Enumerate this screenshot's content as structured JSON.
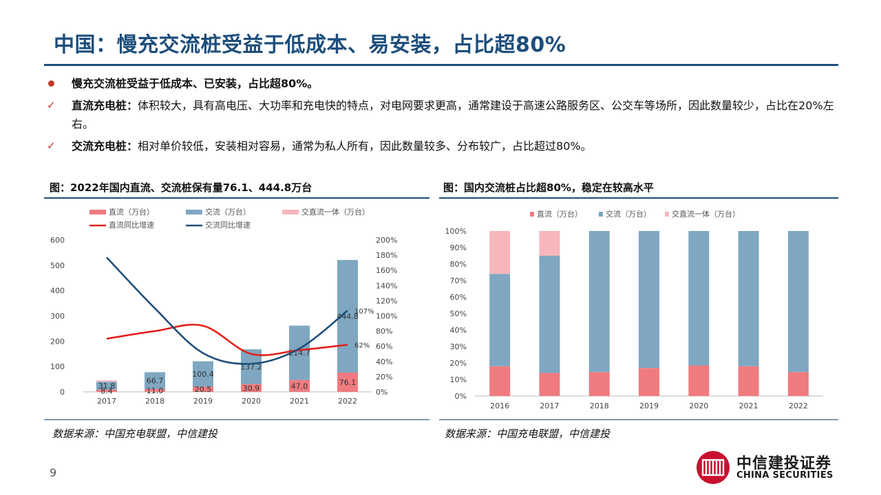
{
  "header": {
    "title": "中国：慢充交流桩受益于低成本、易安装，占比超80%"
  },
  "bullets": [
    {
      "type": "dot",
      "bold": "慢充交流桩受益于低成本、已安装，占比超80%。",
      "text": ""
    },
    {
      "type": "check",
      "bold": "直流充电桩：",
      "text": "体积较大，具有高电压、大功率和充电快的特点，对电网要求更高，通常建设于高速公路服务区、公交车等场所，因此数量较少，占比在20%左右。"
    },
    {
      "type": "check",
      "bold": "交流充电桩：",
      "text": "相对单价较低，安装相对容易，通常为私人所有，因此数量较多、分布较广，占比超过80%。"
    }
  ],
  "check_glyph": "✓",
  "left_panel": {
    "title": "图：2022年国内直流、交流桩保有量76.1、444.8万台",
    "source": "数据来源：中国充电联盟，中信建投"
  },
  "right_panel": {
    "title": "图：国内交流桩占比超80%，稳定在较高水平",
    "source": "数据来源：中国充电联盟，中信建投"
  },
  "page_number": "9",
  "logo": {
    "cn": "中信建投证券",
    "en": "CHINA SECURITIES",
    "icon": "citic-logo-icon"
  },
  "colors": {
    "brand_blue": "#1d4e7c",
    "dc": "#f07b7f",
    "ac": "#7fa7c1",
    "combo": "#f7b6bb",
    "dc_line": "#e3201b",
    "ac_line": "#1f4e79"
  },
  "chart_data": [
    {
      "type": "bar",
      "stacked": true,
      "categories": [
        "2017",
        "2018",
        "2019",
        "2020",
        "2021",
        "2022"
      ],
      "series": [
        {
          "name": "直流（万台）",
          "values": [
            8.4,
            11.0,
            20.5,
            30.9,
            47.0,
            76.1
          ],
          "labels": [
            "8.4",
            "11.0",
            "20.5",
            "30.9",
            "47.0",
            "76.1"
          ]
        },
        {
          "name": "交流（万台）",
          "values": [
            31.8,
            66.7,
            100.4,
            137.2,
            214.7,
            444.8
          ],
          "labels": [
            "31.8",
            "66.7",
            "100.4",
            "137.2",
            "214.7",
            "444.8"
          ]
        },
        {
          "name": "交直流一体（万台）",
          "values": [
            5.2,
            0,
            0,
            0,
            0,
            0
          ],
          "labels": [
            "",
            "",
            "",
            "",
            "",
            ""
          ]
        }
      ],
      "lines": [
        {
          "name": "直流同比增速",
          "axis": "right",
          "values": [
            70,
            80,
            87,
            50,
            55,
            62
          ],
          "end_label": "62%"
        },
        {
          "name": "交流同比增速",
          "axis": "right",
          "values": [
            177,
            110,
            51,
            37,
            57,
            107
          ],
          "end_label": "107%"
        }
      ],
      "ylim": [
        0,
        600
      ],
      "yticks": [
        "0",
        "100",
        "200",
        "300",
        "400",
        "500",
        "600"
      ],
      "y2lim": [
        0,
        200
      ],
      "y2ticks": [
        "0%",
        "20%",
        "40%",
        "60%",
        "80%",
        "100%",
        "120%",
        "140%",
        "160%",
        "180%",
        "200%"
      ],
      "legend": "top"
    },
    {
      "type": "bar",
      "stacked": true,
      "percent": true,
      "categories": [
        "2016",
        "2017",
        "2018",
        "2019",
        "2020",
        "2021",
        "2022"
      ],
      "series": [
        {
          "name": "直流（万台）",
          "values": [
            18,
            14,
            14.5,
            17,
            18.5,
            18,
            14.5
          ]
        },
        {
          "name": "交流（万台）",
          "values": [
            56,
            71,
            85.5,
            83,
            81.5,
            82,
            85.5
          ]
        },
        {
          "name": "交直流一体（万台）",
          "values": [
            26,
            15,
            0,
            0,
            0,
            0,
            0
          ]
        }
      ],
      "ylim": [
        0,
        100
      ],
      "yticks": [
        "0%",
        "10%",
        "20%",
        "30%",
        "40%",
        "50%",
        "60%",
        "70%",
        "80%",
        "90%",
        "100%"
      ],
      "legend": "top"
    }
  ]
}
